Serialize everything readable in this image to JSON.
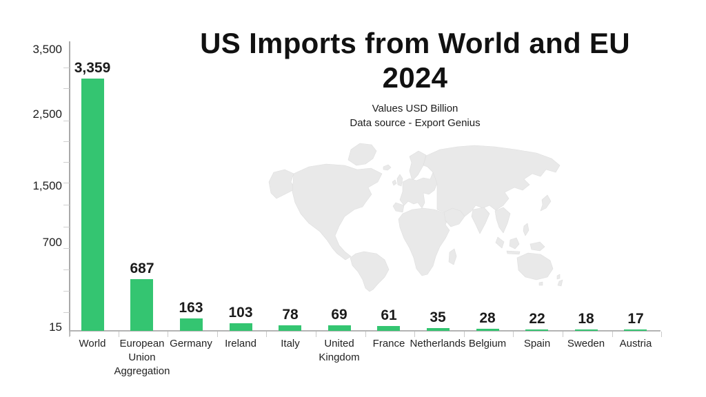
{
  "title": {
    "line1": "US Imports from World and EU",
    "line2": "2024"
  },
  "subtitle": {
    "line1": "Values USD Billion",
    "line2": "Data source - Export Genius"
  },
  "chart_data": {
    "type": "bar",
    "title": "US Imports from World and EU 2024",
    "subtitle": "Values USD Billion",
    "source_note": "Data source - Export Genius",
    "categories": [
      "World",
      "European Union Aggregation",
      "Germany",
      "Ireland",
      "Italy",
      "United Kingdom",
      "France",
      "Netherlands",
      "Belgium",
      "Spain",
      "Sweden",
      "Austria"
    ],
    "category_display": [
      "World",
      "European\nUnion\nAggregation",
      "Germany",
      "Ireland",
      "Italy",
      "United\nKingdom",
      "France",
      "Netherlands",
      "Belgium",
      "Spain",
      "Sweden",
      "Austria"
    ],
    "values": [
      3359,
      687,
      163,
      103,
      78,
      69,
      61,
      35,
      28,
      22,
      18,
      17
    ],
    "value_labels": [
      "3,359",
      "687",
      "163",
      "103",
      "78",
      "69",
      "61",
      "35",
      "28",
      "22",
      "18",
      "17"
    ],
    "y_axis_tick_labels": [
      "3,500",
      "2,500",
      "1,500",
      "700",
      "15"
    ],
    "y_axis_max_label": "3,500",
    "grid": false,
    "legend": false,
    "bar_color": "#34c571",
    "axis_color": "#a9a9a9",
    "label_color": "#1b1b1b"
  },
  "background": {
    "color": "#ffffff",
    "watermark": "world-map",
    "watermark_color": "#e9e9e9"
  }
}
